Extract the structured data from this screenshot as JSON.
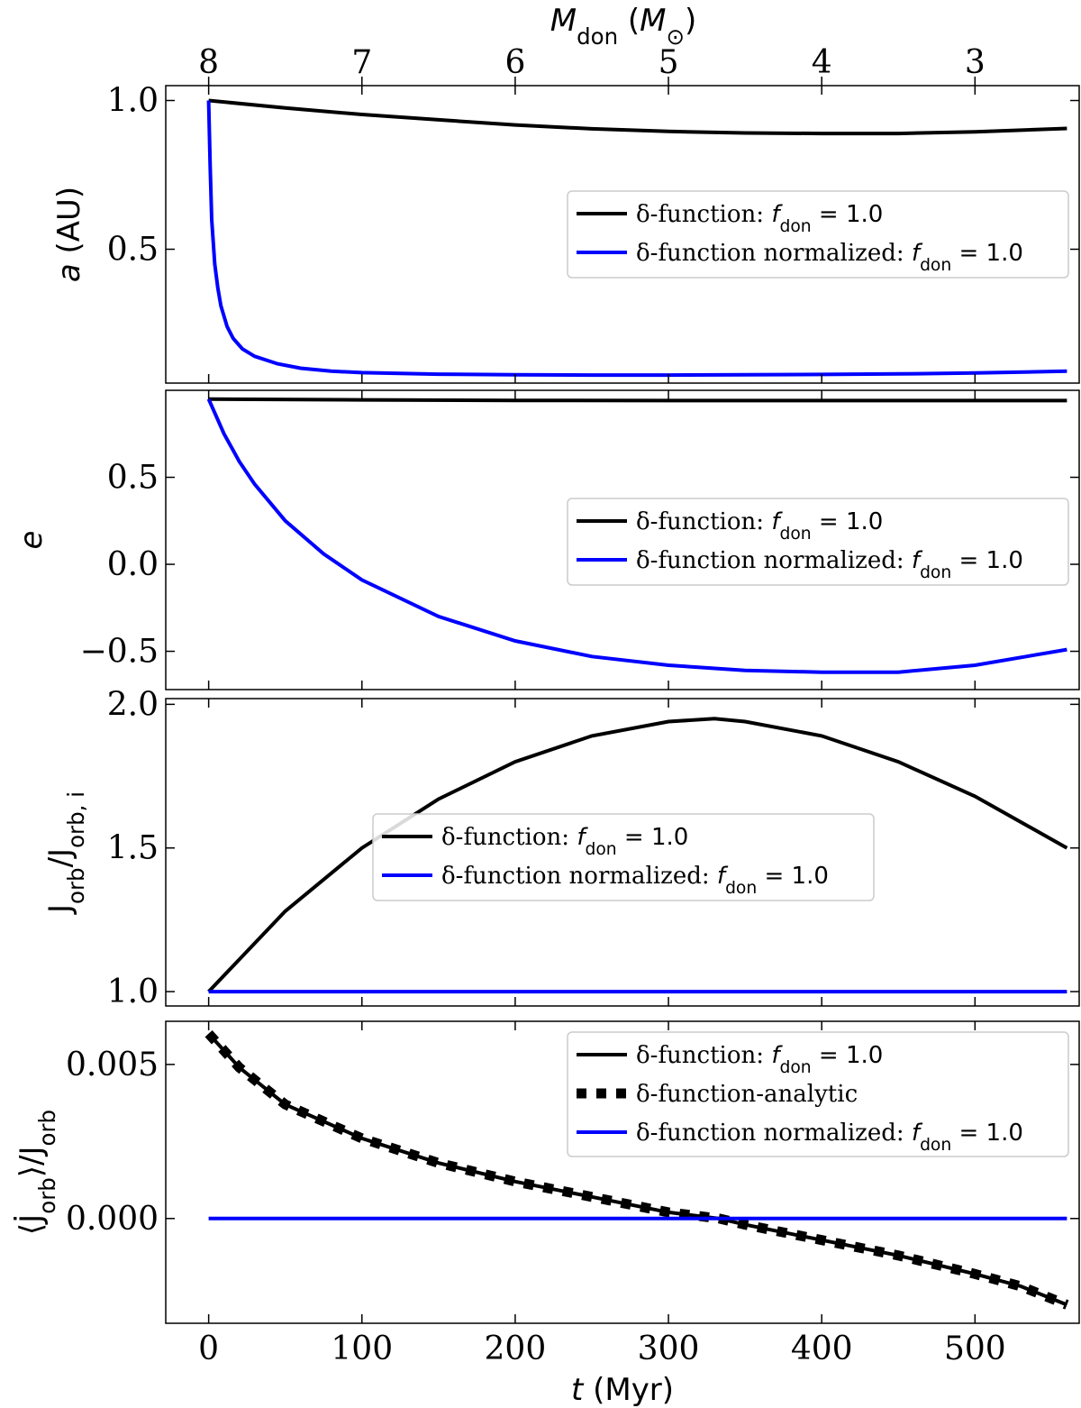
{
  "chart_data": {
    "type": "line",
    "shared_x": {
      "label_var": "t",
      "label_unit": "(Myr)",
      "range": [
        -28,
        568
      ],
      "ticks": [
        0,
        100,
        200,
        300,
        400,
        500
      ],
      "tick_labels": [
        "0",
        "100",
        "200",
        "300",
        "400",
        "500"
      ]
    },
    "top_x": {
      "label_var": "M",
      "label_sub": "don",
      "label_unit_open": "(",
      "label_unit": "M",
      "label_unit_sub": "⊙",
      "label_unit_close": ")",
      "ticks_t": [
        0,
        100,
        200,
        300,
        400,
        500
      ],
      "tick_labels": [
        "8",
        "7",
        "6",
        "5",
        "4",
        "3"
      ]
    },
    "legend_labels": {
      "black_prefix": "δ-function: ",
      "blue_prefix": "δ-function normalized: ",
      "analytic": "δ-function-analytic",
      "f_var": "f",
      "f_sub": "don",
      "f_value": " = 1.0"
    },
    "panels": [
      {
        "id": "a",
        "ylabel": "a (AU)",
        "ylim": [
          0.05,
          1.05
        ],
        "yticks": [
          0.5,
          1.0
        ],
        "ytick_labels": [
          "0.5",
          "1.0"
        ],
        "legend_position": "center-right",
        "series": [
          {
            "name": "δ-function: f_don = 1.0",
            "color": "#000000",
            "style": "solid",
            "x": [
              0,
              50,
              100,
              150,
              200,
              250,
              300,
              350,
              400,
              450,
              500,
              560
            ],
            "y": [
              1.0,
              0.975,
              0.953,
              0.935,
              0.918,
              0.905,
              0.896,
              0.891,
              0.889,
              0.889,
              0.895,
              0.906
            ]
          },
          {
            "name": "δ-function normalized: f_don = 1.0",
            "color": "#0000ff",
            "style": "solid",
            "x": [
              0,
              1,
              2,
              4,
              6,
              8,
              12,
              16,
              22,
              30,
              45,
              60,
              80,
              100,
              150,
              200,
              250,
              300,
              350,
              400,
              450,
              500,
              560
            ],
            "y": [
              1.0,
              0.78,
              0.6,
              0.45,
              0.37,
              0.31,
              0.24,
              0.2,
              0.165,
              0.14,
              0.115,
              0.1,
              0.09,
              0.085,
              0.08,
              0.078,
              0.077,
              0.077,
              0.078,
              0.079,
              0.081,
              0.084,
              0.09
            ]
          }
        ]
      },
      {
        "id": "e",
        "ylabel": "e",
        "ylim": [
          -0.72,
          1.0
        ],
        "yticks": [
          -0.5,
          0.0,
          0.5
        ],
        "ytick_labels": [
          "−0.5",
          "0.0",
          "0.5"
        ],
        "legend_position": "center-right",
        "series": [
          {
            "name": "δ-function: f_don = 1.0",
            "color": "#000000",
            "style": "solid",
            "x": [
              0,
              100,
              200,
              300,
              400,
              500,
              560
            ],
            "y": [
              0.95,
              0.945,
              0.942,
              0.941,
              0.941,
              0.941,
              0.941
            ]
          },
          {
            "name": "δ-function normalized: f_don = 1.0",
            "color": "#0000ff",
            "style": "solid",
            "x": [
              0,
              10,
              20,
              30,
              50,
              75,
              100,
              150,
              200,
              250,
              300,
              350,
              400,
              450,
              500,
              560
            ],
            "y": [
              0.95,
              0.75,
              0.59,
              0.46,
              0.25,
              0.06,
              -0.09,
              -0.3,
              -0.44,
              -0.53,
              -0.58,
              -0.61,
              -0.62,
              -0.62,
              -0.58,
              -0.49
            ]
          }
        ]
      },
      {
        "id": "J",
        "ylabel": "J_orb/J_orb,i",
        "ylim": [
          0.95,
          2.02
        ],
        "yticks": [
          1.0,
          1.5,
          2.0
        ],
        "ytick_labels": [
          "1.0",
          "1.5",
          "2.0"
        ],
        "legend_position": "center",
        "series": [
          {
            "name": "δ-function: f_don = 1.0",
            "color": "#000000",
            "style": "solid",
            "x": [
              0,
              50,
              100,
              150,
              200,
              250,
              300,
              330,
              350,
              400,
              450,
              500,
              560
            ],
            "y": [
              1.0,
              1.28,
              1.5,
              1.67,
              1.8,
              1.89,
              1.94,
              1.95,
              1.94,
              1.89,
              1.8,
              1.68,
              1.5
            ]
          },
          {
            "name": "δ-function normalized: f_don = 1.0",
            "color": "#0000ff",
            "style": "solid",
            "x": [
              0,
              560
            ],
            "y": [
              1.0,
              1.0
            ]
          }
        ]
      },
      {
        "id": "Jdot",
        "ylabel": "⟨J̇_orb⟩/J_orb",
        "ylim": [
          -0.0034,
          0.0064
        ],
        "yticks": [
          0.0,
          0.005
        ],
        "ytick_labels": [
          "0.000",
          "0.005"
        ],
        "legend_position": "upper-right",
        "series": [
          {
            "name": "δ-function: f_don = 1.0",
            "color": "#000000",
            "style": "solid",
            "x": [
              0,
              20,
              50,
              100,
              150,
              200,
              250,
              300,
              333,
              350,
              400,
              450,
              500,
              530,
              560
            ],
            "y": [
              0.006,
              0.0049,
              0.0037,
              0.0026,
              0.0018,
              0.0012,
              0.0007,
              0.0002,
              0.0,
              -0.0002,
              -0.0007,
              -0.0012,
              -0.0018,
              -0.0022,
              -0.0028
            ]
          },
          {
            "name": "δ-function-analytic",
            "color": "#000000",
            "style": "dotted",
            "x": [
              0,
              20,
              50,
              100,
              150,
              200,
              250,
              300,
              333,
              350,
              400,
              450,
              500,
              530,
              560
            ],
            "y": [
              0.006,
              0.0049,
              0.0037,
              0.0026,
              0.0018,
              0.0012,
              0.0007,
              0.0002,
              0.0,
              -0.0002,
              -0.0007,
              -0.0012,
              -0.0018,
              -0.0022,
              -0.0028
            ]
          },
          {
            "name": "δ-function normalized: f_don = 1.0",
            "color": "#0000ff",
            "style": "solid",
            "x": [
              0,
              560
            ],
            "y": [
              0.0,
              0.0
            ]
          }
        ]
      }
    ]
  }
}
